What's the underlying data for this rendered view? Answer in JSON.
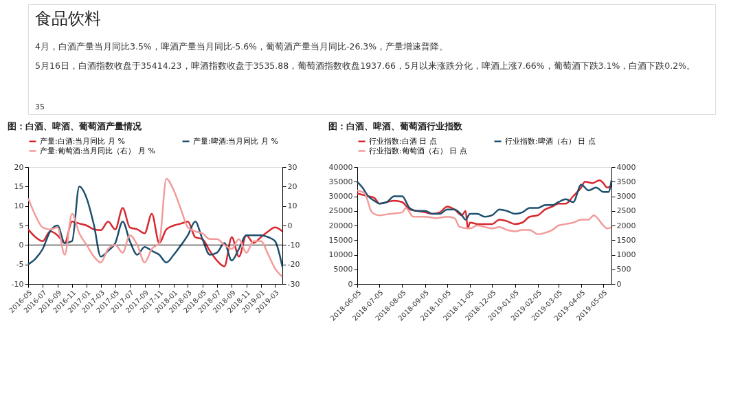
{
  "chart_data": [
    {
      "type": "other",
      "title": "食品饮料",
      "annotations": [
        "4月，白酒产量当月同比3.5%，啤酒产量当月同比-5.6%，葡萄酒产量当月同比-26.3%，产量增速普降。",
        "5月16日，白酒指数收盘于35414.23，啤酒指数收盘于3535.88，葡萄酒指数收盘1937.66，5月以来涨跌分化，啤酒上涨7.66%，葡萄酒下跌3.1%，白酒下跌0.2%。",
        "35"
      ]
    },
    {
      "type": "line",
      "title": "图：白酒、啤酒、葡萄酒产量情况",
      "legend": "top",
      "grid": false,
      "marker": "none",
      "line_style": "solid",
      "x": [
        "2016-05",
        "2016-06",
        "2016-07",
        "2016-08",
        "2016-09",
        "2016-10",
        "2016-11",
        "2016-12",
        "2017-01",
        "2017-02",
        "2017-03",
        "2017-04",
        "2017-05",
        "2017-06",
        "2017-07",
        "2017-08",
        "2017-09",
        "2017-10",
        "2017-11",
        "2017-12",
        "2018-01",
        "2018-02",
        "2018-03",
        "2018-04",
        "2018-05",
        "2018-06",
        "2018-07",
        "2018-08",
        "2018-09",
        "2018-10",
        "2018-11",
        "2018-12",
        "2019-01",
        "2019-02",
        "2019-03",
        "2019-04"
      ],
      "xlim": [
        "2016-05",
        "2019-04"
      ],
      "xticks": [
        "2016-05",
        "2016-07",
        "2016-09",
        "2016-11",
        "2017-01",
        "2017-03",
        "2017-05",
        "2017-07",
        "2017-09",
        "2017-11",
        "2018-01",
        "2018-03",
        "2018-05",
        "2018-07",
        "2018-09",
        "2018-11",
        "2019-01",
        "2019-03"
      ],
      "ylim": [
        -10,
        20
      ],
      "yticks": [
        -10,
        -5,
        0,
        5,
        10,
        15,
        20
      ],
      "y2lim": [
        -30,
        30
      ],
      "y2ticks": [
        -30,
        -20,
        -10,
        0,
        10,
        20,
        30
      ],
      "ref_lines": [
        {
          "axis": "y",
          "value": 0,
          "color": "#000000"
        }
      ],
      "series": [
        {
          "name": "产量:白酒:当月同比  月 %",
          "color": "#d7282f",
          "values": [
            4,
            2,
            1,
            3.5,
            2.5,
            0.5,
            6,
            5.5,
            5,
            4,
            3.8,
            6,
            4,
            9.5,
            4.5,
            4,
            3,
            8,
            0.5,
            4,
            5,
            5.5,
            6,
            2,
            1.5,
            -1.5,
            -4,
            -5.5,
            2,
            -3,
            2.5,
            0.5,
            2,
            3.5,
            4.5,
            3.5
          ]
        },
        {
          "name": "产量:啤酒:当月同比  月 %",
          "color": "#1d4f6e",
          "values": [
            -5,
            -3.5,
            -1,
            3.5,
            5,
            0.5,
            1,
            15,
            12,
            5,
            -3,
            -1.5,
            0.5,
            6,
            1,
            -2.5,
            -0.5,
            -1.5,
            -2.5,
            -4.5,
            -2.5,
            0,
            2.5,
            6,
            1.5,
            -2.5,
            -2,
            0.5,
            -4,
            -1,
            2.5,
            2.5,
            2.5,
            2,
            1,
            -5.6
          ]
        },
        {
          "name": "产量:葡萄酒:当月同比（右）  月 %",
          "color": "#f29b9b",
          "axis": "y2",
          "values": [
            14,
            5,
            -1,
            -2,
            -1,
            -15,
            6,
            -4,
            -10,
            -16,
            -19,
            -12,
            -10,
            -14,
            -5,
            -10,
            -19,
            -12,
            -9,
            24,
            18,
            8,
            -1,
            -3,
            -4,
            -7,
            -7,
            -10,
            -12,
            -7,
            -14,
            -8,
            -8,
            -15,
            -22,
            -26.3
          ]
        }
      ]
    },
    {
      "type": "line",
      "title": "图：白酒、啤酒、葡萄酒行业指数",
      "legend": "top",
      "grid": false,
      "marker": "none",
      "line_style": "solid",
      "xlim": [
        "2018-06-05",
        "2019-05-16"
      ],
      "xticks": [
        "2018-06-05",
        "2018-07-05",
        "2018-08-05",
        "2018-09-05",
        "2018-10-05",
        "2018-11-05",
        "2018-12-05",
        "2019-01-05",
        "2019-02-05",
        "2019-03-05",
        "2019-04-05",
        "2019-05-05"
      ],
      "ylim": [
        0,
        40000
      ],
      "yticks": [
        0,
        5000,
        10000,
        15000,
        20000,
        25000,
        30000,
        35000,
        40000
      ],
      "y2lim": [
        0,
        4000
      ],
      "y2ticks": [
        0,
        500,
        1000,
        1500,
        2000,
        2500,
        3000,
        3500,
        4000
      ],
      "series": [
        {
          "name": "行业指数:白酒  日 点",
          "color": "#d7282f",
          "x": [
            "2018-06-05",
            "2018-06-12",
            "2018-06-20",
            "2018-06-28",
            "2018-07-05",
            "2018-07-15",
            "2018-07-25",
            "2018-08-05",
            "2018-08-15",
            "2018-08-25",
            "2018-09-05",
            "2018-09-15",
            "2018-09-25",
            "2018-10-05",
            "2018-10-15",
            "2018-10-25",
            "2018-10-30",
            "2018-11-02",
            "2018-11-05",
            "2018-11-15",
            "2018-11-25",
            "2018-12-05",
            "2018-12-15",
            "2018-12-25",
            "2019-01-05",
            "2019-01-15",
            "2019-01-25",
            "2019-02-05",
            "2019-02-15",
            "2019-02-25",
            "2019-03-05",
            "2019-03-15",
            "2019-03-25",
            "2019-04-05",
            "2019-04-10",
            "2019-04-20",
            "2019-04-30",
            "2019-05-05",
            "2019-05-10",
            "2019-05-16"
          ],
          "values": [
            31000,
            30500,
            30000,
            29500,
            27500,
            28000,
            28500,
            28000,
            25500,
            25000,
            24500,
            24000,
            24500,
            26500,
            25500,
            23500,
            25000,
            19000,
            21000,
            20500,
            20500,
            20500,
            22000,
            21500,
            20500,
            21000,
            23000,
            23500,
            25500,
            26500,
            27500,
            27500,
            30000,
            33000,
            35000,
            34500,
            35500,
            34500,
            33000,
            33500
          ]
        },
        {
          "name": "行业指数:啤酒（右）  日 点",
          "color": "#1d4f6e",
          "axis": "y2",
          "x": [
            "2018-06-05",
            "2018-06-12",
            "2018-06-20",
            "2018-06-28",
            "2018-07-05",
            "2018-07-15",
            "2018-07-25",
            "2018-08-05",
            "2018-08-15",
            "2018-08-25",
            "2018-09-05",
            "2018-09-15",
            "2018-09-25",
            "2018-10-05",
            "2018-10-15",
            "2018-10-25",
            "2018-10-30",
            "2018-11-05",
            "2018-11-15",
            "2018-11-25",
            "2018-12-05",
            "2018-12-15",
            "2018-12-25",
            "2019-01-05",
            "2019-01-15",
            "2019-01-25",
            "2019-02-05",
            "2019-02-15",
            "2019-02-25",
            "2019-03-05",
            "2019-03-15",
            "2019-03-25",
            "2019-04-05",
            "2019-04-15",
            "2019-04-25",
            "2019-05-05",
            "2019-05-12",
            "2019-05-16"
          ],
          "values": [
            3500,
            3300,
            3000,
            2850,
            2750,
            2800,
            3000,
            3000,
            2600,
            2500,
            2500,
            2400,
            2400,
            2550,
            2550,
            2350,
            2200,
            2400,
            2400,
            2300,
            2350,
            2550,
            2500,
            2400,
            2450,
            2600,
            2600,
            2700,
            2700,
            2800,
            2900,
            2800,
            3400,
            3200,
            3300,
            3150,
            3150,
            3540
          ]
        },
        {
          "name": "行业指数:葡萄酒（右）  日 点",
          "color": "#f29b9b",
          "axis": "y2",
          "x": [
            "2018-06-05",
            "2018-06-15",
            "2018-06-25",
            "2018-07-05",
            "2018-07-20",
            "2018-08-05",
            "2018-08-10",
            "2018-08-20",
            "2018-09-05",
            "2018-09-20",
            "2018-10-05",
            "2018-10-15",
            "2018-10-22",
            "2018-11-05",
            "2018-11-15",
            "2018-11-25",
            "2018-12-05",
            "2018-12-15",
            "2018-12-25",
            "2019-01-05",
            "2019-01-15",
            "2019-01-25",
            "2019-02-05",
            "2019-02-15",
            "2019-02-25",
            "2019-03-05",
            "2019-03-15",
            "2019-03-25",
            "2019-04-05",
            "2019-04-15",
            "2019-04-22",
            "2019-05-05",
            "2019-05-10",
            "2019-05-16"
          ],
          "values": [
            3200,
            3100,
            2450,
            2350,
            2400,
            2450,
            2600,
            2300,
            2300,
            2250,
            2300,
            2250,
            1950,
            1900,
            2000,
            1950,
            1900,
            1950,
            1850,
            1800,
            1850,
            1850,
            1700,
            1750,
            1850,
            2000,
            2050,
            2100,
            2200,
            2200,
            2350,
            2000,
            1900,
            1940
          ]
        }
      ]
    }
  ]
}
